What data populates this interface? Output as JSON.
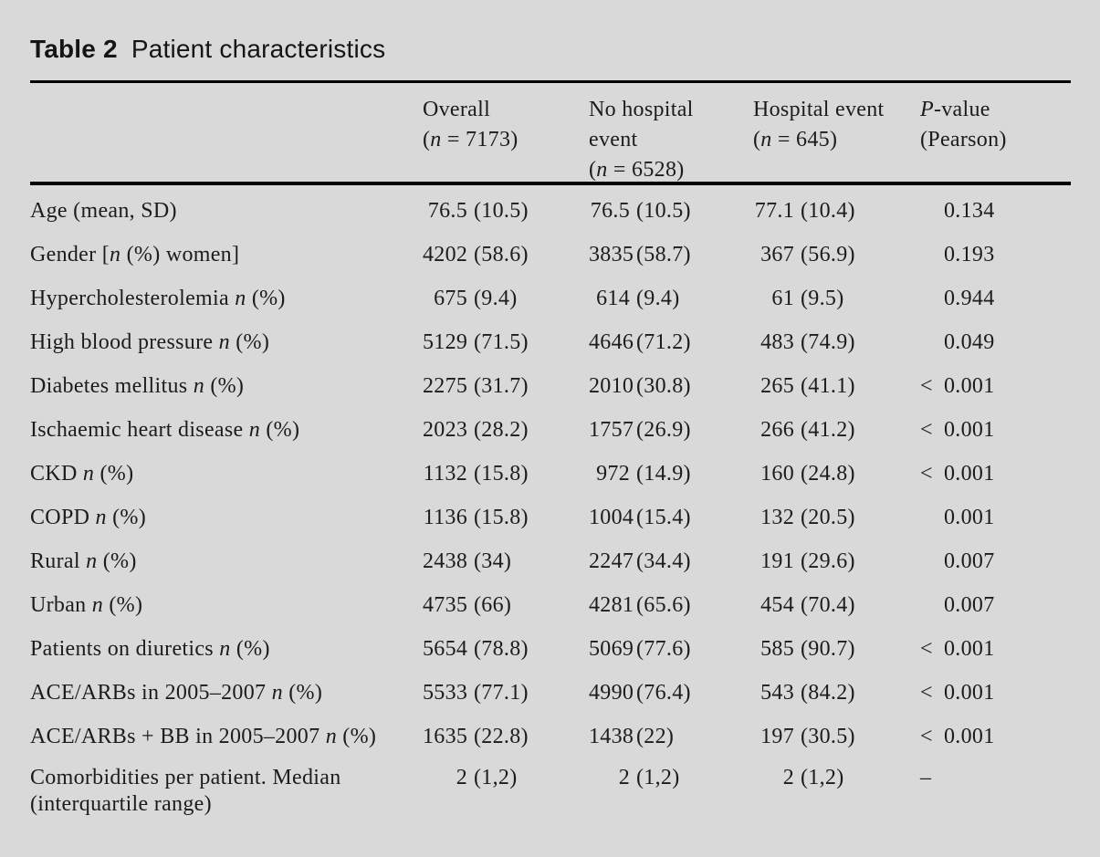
{
  "title": {
    "label": "Table 2",
    "text": "Patient characteristics"
  },
  "colors": {
    "background": "#d9d9d9",
    "text": "#1c1c1c",
    "rule": "#000000"
  },
  "table": {
    "header": {
      "overall": [
        {
          "t": "Overall\n("
        },
        {
          "t": "n",
          "i": true
        },
        {
          "t": " = 7173)"
        }
      ],
      "no_hospital": [
        {
          "t": "No hospital\nevent\n("
        },
        {
          "t": "n",
          "i": true
        },
        {
          "t": " = 6528)"
        }
      ],
      "hospital": [
        {
          "t": "Hospital event\n("
        },
        {
          "t": "n",
          "i": true
        },
        {
          "t": " = 645)"
        }
      ],
      "p_value": [
        {
          "t": "P",
          "i": true
        },
        {
          "t": "-value\n(Pearson)"
        }
      ]
    },
    "rows": [
      {
        "label": [
          {
            "t": "Age (mean, SD)"
          }
        ],
        "overall": {
          "n": "76.5",
          "p": "(10.5)"
        },
        "no_hospital": {
          "n": "76.5",
          "p": "(10.5)"
        },
        "hospital": {
          "n": "77.1",
          "p": "(10.4)"
        },
        "p": {
          "pre": "",
          "val": "0.134"
        }
      },
      {
        "label": [
          {
            "t": "Gender ["
          },
          {
            "t": "n",
            "i": true
          },
          {
            "t": " (%) women]"
          }
        ],
        "overall": {
          "n": "4202",
          "p": "(58.6)"
        },
        "no_hospital": {
          "n": "3835",
          "p": "(58.7)"
        },
        "hospital": {
          "n": "367",
          "p": "(56.9)"
        },
        "p": {
          "pre": "",
          "val": "0.193"
        }
      },
      {
        "label": [
          {
            "t": "Hypercholesterolemia "
          },
          {
            "t": "n",
            "i": true
          },
          {
            "t": " (%)"
          }
        ],
        "overall": {
          "n": "675",
          "p": "(9.4)"
        },
        "no_hospital": {
          "n": "614",
          "p": "(9.4)"
        },
        "hospital": {
          "n": "61",
          "p": "(9.5)"
        },
        "p": {
          "pre": "",
          "val": "0.944"
        }
      },
      {
        "label": [
          {
            "t": "High blood pressure "
          },
          {
            "t": "n",
            "i": true
          },
          {
            "t": " (%)"
          }
        ],
        "overall": {
          "n": "5129",
          "p": "(71.5)"
        },
        "no_hospital": {
          "n": "4646",
          "p": "(71.2)"
        },
        "hospital": {
          "n": "483",
          "p": "(74.9)"
        },
        "p": {
          "pre": "",
          "val": "0.049"
        }
      },
      {
        "label": [
          {
            "t": "Diabetes mellitus "
          },
          {
            "t": "n",
            "i": true
          },
          {
            "t": " (%)"
          }
        ],
        "overall": {
          "n": "2275",
          "p": "(31.7)"
        },
        "no_hospital": {
          "n": "2010",
          "p": "(30.8)"
        },
        "hospital": {
          "n": "265",
          "p": "(41.1)"
        },
        "p": {
          "pre": "<",
          "val": "0.001"
        }
      },
      {
        "label": [
          {
            "t": "Ischaemic heart disease "
          },
          {
            "t": "n",
            "i": true
          },
          {
            "t": " (%)"
          }
        ],
        "overall": {
          "n": "2023",
          "p": "(28.2)"
        },
        "no_hospital": {
          "n": "1757",
          "p": "(26.9)"
        },
        "hospital": {
          "n": "266",
          "p": "(41.2)"
        },
        "p": {
          "pre": "<",
          "val": "0.001"
        }
      },
      {
        "label": [
          {
            "t": "CKD "
          },
          {
            "t": "n",
            "i": true
          },
          {
            "t": " (%)"
          }
        ],
        "overall": {
          "n": "1132",
          "p": "(15.8)"
        },
        "no_hospital": {
          "n": "972",
          "p": "(14.9)"
        },
        "hospital": {
          "n": "160",
          "p": "(24.8)"
        },
        "p": {
          "pre": "<",
          "val": "0.001"
        }
      },
      {
        "label": [
          {
            "t": "COPD "
          },
          {
            "t": "n",
            "i": true
          },
          {
            "t": " (%)"
          }
        ],
        "overall": {
          "n": "1136",
          "p": "(15.8)"
        },
        "no_hospital": {
          "n": "1004",
          "p": "(15.4)"
        },
        "hospital": {
          "n": "132",
          "p": "(20.5)"
        },
        "p": {
          "pre": "",
          "val": "0.001"
        }
      },
      {
        "label": [
          {
            "t": "Rural "
          },
          {
            "t": "n",
            "i": true
          },
          {
            "t": " (%)"
          }
        ],
        "overall": {
          "n": "2438",
          "p": "(34)"
        },
        "no_hospital": {
          "n": "2247",
          "p": "(34.4)"
        },
        "hospital": {
          "n": "191",
          "p": "(29.6)"
        },
        "p": {
          "pre": "",
          "val": "0.007"
        }
      },
      {
        "label": [
          {
            "t": "Urban "
          },
          {
            "t": "n",
            "i": true
          },
          {
            "t": " (%)"
          }
        ],
        "overall": {
          "n": "4735",
          "p": "(66)"
        },
        "no_hospital": {
          "n": "4281",
          "p": "(65.6)"
        },
        "hospital": {
          "n": "454",
          "p": "(70.4)"
        },
        "p": {
          "pre": "",
          "val": "0.007"
        }
      },
      {
        "label": [
          {
            "t": "Patients on diuretics "
          },
          {
            "t": "n",
            "i": true
          },
          {
            "t": " (%)"
          }
        ],
        "overall": {
          "n": "5654",
          "p": "(78.8)"
        },
        "no_hospital": {
          "n": "5069",
          "p": "(77.6)"
        },
        "hospital": {
          "n": "585",
          "p": "(90.7)"
        },
        "p": {
          "pre": "<",
          "val": "0.001"
        }
      },
      {
        "label": [
          {
            "t": "ACE/ARBs in 2005–2007 "
          },
          {
            "t": "n",
            "i": true
          },
          {
            "t": " (%)"
          }
        ],
        "overall": {
          "n": "5533",
          "p": "(77.1)"
        },
        "no_hospital": {
          "n": "4990",
          "p": "(76.4)"
        },
        "hospital": {
          "n": "543",
          "p": "(84.2)"
        },
        "p": {
          "pre": "<",
          "val": "0.001"
        }
      },
      {
        "label": [
          {
            "t": "ACE/ARBs + BB in 2005–2007 "
          },
          {
            "t": "n",
            "i": true
          },
          {
            "t": " (%)"
          }
        ],
        "overall": {
          "n": "1635",
          "p": "(22.8)"
        },
        "no_hospital": {
          "n": "1438",
          "p": "(22)"
        },
        "hospital": {
          "n": "197",
          "p": "(30.5)"
        },
        "p": {
          "pre": "<",
          "val": "0.001"
        }
      },
      {
        "label": [
          {
            "t": "Comorbidities per patient. Median\n(interquartile range)"
          }
        ],
        "overall": {
          "n": "2",
          "p": "(1,2)"
        },
        "no_hospital": {
          "n": "2",
          "p": "(1,2)"
        },
        "hospital": {
          "n": "2",
          "p": "(1,2)"
        },
        "p": {
          "pre": "–",
          "val": ""
        }
      }
    ]
  }
}
